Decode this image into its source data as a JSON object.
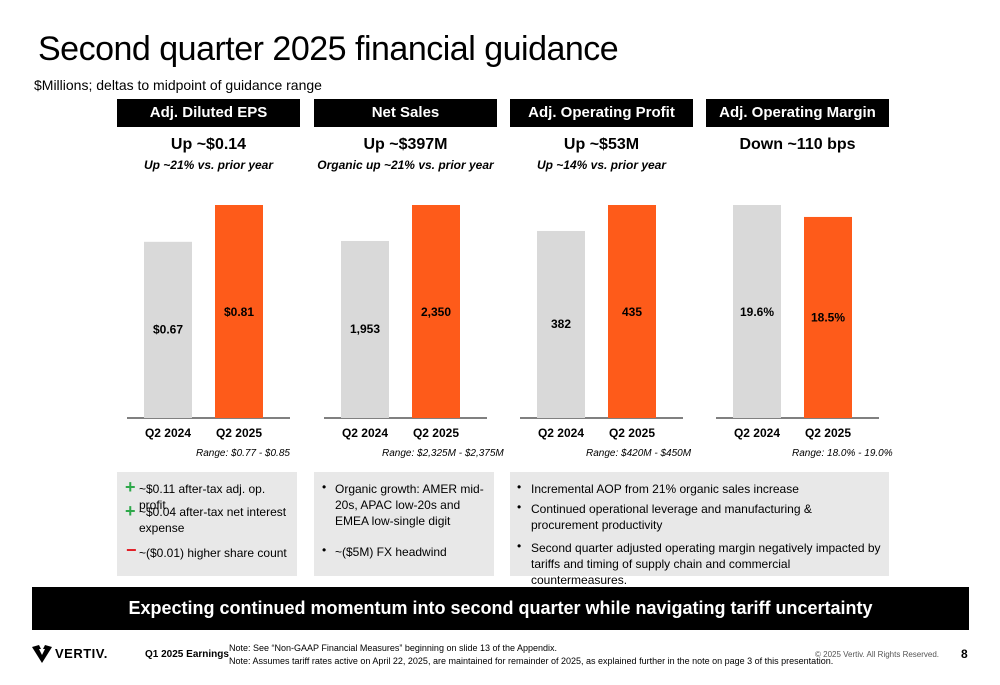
{
  "title": "Second quarter 2025 financial guidance",
  "subtitle": "$Millions; deltas to midpoint of guidance range",
  "colors": {
    "prior": "#d9d9d9",
    "current": "#fe5b1a",
    "axis": "#000000"
  },
  "panels": [
    {
      "header": "Adj. Diluted EPS",
      "headline": "Up ~$0.14",
      "sub": "Up ~21% vs. prior year",
      "range": "Range: $0.77 - $0.85"
    },
    {
      "header": "Net Sales",
      "headline": "Up ~$397M",
      "sub": "Organic up ~21% vs. prior year",
      "range": "Range: $2,325M - $2,375M"
    },
    {
      "header": "Adj. Operating Profit",
      "headline": "Up ~$53M",
      "sub": "Up ~14% vs. prior year",
      "range": "Range: $420M - $450M"
    },
    {
      "header": "Adj. Operating Margin",
      "headline": "Down ~110 bps",
      "sub": "",
      "range": "Range: 18.0% - 19.0%"
    }
  ],
  "chart_data": [
    {
      "type": "bar",
      "title": "Adj. Diluted EPS",
      "categories": [
        "Q2 2024",
        "Q2 2025"
      ],
      "values": [
        0.67,
        0.81
      ],
      "labels": [
        "$0.67",
        "$0.81"
      ]
    },
    {
      "type": "bar",
      "title": "Net Sales",
      "categories": [
        "Q2 2024",
        "Q2 2025"
      ],
      "values": [
        1953,
        2350
      ],
      "labels": [
        "1,953",
        "2,350"
      ]
    },
    {
      "type": "bar",
      "title": "Adj. Operating Profit",
      "categories": [
        "Q2 2024",
        "Q2 2025"
      ],
      "values": [
        382,
        435
      ],
      "labels": [
        "382",
        "435"
      ]
    },
    {
      "type": "bar",
      "title": "Adj. Operating Margin",
      "categories": [
        "Q2 2024",
        "Q2 2025"
      ],
      "values": [
        19.6,
        18.5
      ],
      "labels": [
        "19.6%",
        "18.5%"
      ]
    }
  ],
  "notes": {
    "box1": [
      {
        "sign": "+",
        "text": "~$0.11 after-tax adj. op. profit"
      },
      {
        "sign": "+",
        "text": "~$0.04 after-tax net interest expense"
      },
      {
        "sign": "−",
        "text": "~($0.01) higher share count"
      }
    ],
    "box2": [
      {
        "text": "Organic growth:  AMER mid-20s, APAC low-20s and EMEA low-single digit"
      },
      {
        "text": "~($5M) FX headwind"
      }
    ],
    "box3": [
      {
        "text": "Incremental AOP from 21% organic sales increase"
      },
      {
        "text": "Continued operational leverage and manufacturing & procurement productivity"
      },
      {
        "text": "Second quarter adjusted operating margin negatively impacted by tariffs and timing of supply chain and commercial countermeasures."
      }
    ]
  },
  "banner": "Expecting continued momentum into second quarter while navigating tariff uncertainty",
  "footer": {
    "logo": "VERTIV.",
    "earnings": "Q1 2025 Earnings",
    "note1": "Note: See “Non-GAAP Financial Measures” beginning on slide 13 of the Appendix.",
    "note2": "Note: Assumes tariff rates active on April 22, 2025, are maintained for remainder of 2025, as explained further in the note on page 3 of this presentation.",
    "copyright": "© 2025 Vertiv. All Rights Reserved.",
    "page": "8"
  }
}
